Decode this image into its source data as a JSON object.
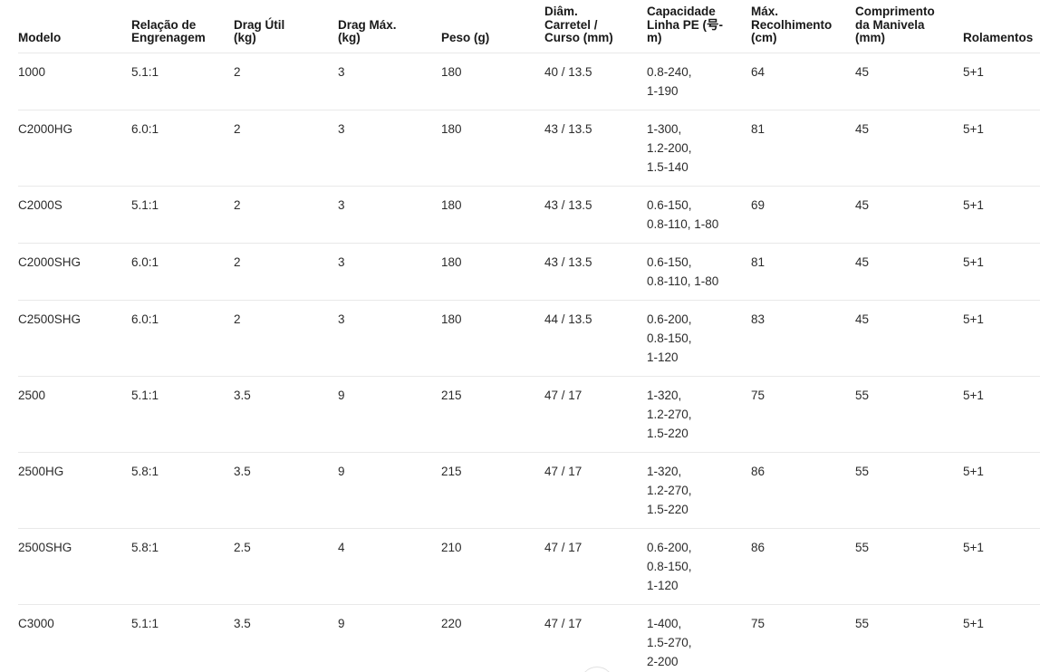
{
  "colors": {
    "background": "#ffffff",
    "header_text": "#191919",
    "body_text": "#2b2b2b",
    "divider": "#e9e9e9"
  },
  "table": {
    "columns": [
      {
        "id": "modelo",
        "label": "Modelo"
      },
      {
        "id": "gear_ratio",
        "label": "Relação de\nEngrenagem"
      },
      {
        "id": "drag_util",
        "label": "Drag Útil\n(kg)"
      },
      {
        "id": "drag_max",
        "label": "Drag Máx.\n(kg)"
      },
      {
        "id": "peso",
        "label": "Peso (g)"
      },
      {
        "id": "diam",
        "label": "Diâm.\nCarretel /\nCurso (mm)"
      },
      {
        "id": "capacidade",
        "label": "Capacidade\nLinha PE (号-\nm)"
      },
      {
        "id": "recolhimento",
        "label": "Máx.\nRecolhimento\n(cm)"
      },
      {
        "id": "manivela",
        "label": "Comprimento\nda Manivela\n(mm)"
      },
      {
        "id": "rolamentos",
        "label": "Rolamentos"
      }
    ],
    "rows": [
      {
        "modelo": "1000",
        "gear_ratio": "5.1:1",
        "drag_util": "2",
        "drag_max": "3",
        "peso": "180",
        "diam": "40 / 13.5",
        "capacidade": "0.8-240,\n1-190",
        "recolhimento": "64",
        "manivela": "45",
        "rolamentos": "5+1"
      },
      {
        "modelo": "C2000HG",
        "gear_ratio": "6.0:1",
        "drag_util": "2",
        "drag_max": "3",
        "peso": "180",
        "diam": "43 / 13.5",
        "capacidade": "1-300,\n1.2-200,\n1.5-140",
        "recolhimento": "81",
        "manivela": "45",
        "rolamentos": "5+1"
      },
      {
        "modelo": "C2000S",
        "gear_ratio": "5.1:1",
        "drag_util": "2",
        "drag_max": "3",
        "peso": "180",
        "diam": "43 / 13.5",
        "capacidade": "0.6-150,\n0.8-110, 1-80",
        "recolhimento": "69",
        "manivela": "45",
        "rolamentos": "5+1"
      },
      {
        "modelo": "C2000SHG",
        "gear_ratio": "6.0:1",
        "drag_util": "2",
        "drag_max": "3",
        "peso": "180",
        "diam": "43 / 13.5",
        "capacidade": "0.6-150,\n0.8-110, 1-80",
        "recolhimento": "81",
        "manivela": "45",
        "rolamentos": "5+1"
      },
      {
        "modelo": "C2500SHG",
        "gear_ratio": "6.0:1",
        "drag_util": "2",
        "drag_max": "3",
        "peso": "180",
        "diam": "44 / 13.5",
        "capacidade": "0.6-200,\n0.8-150,\n1-120",
        "recolhimento": "83",
        "manivela": "45",
        "rolamentos": "5+1"
      },
      {
        "modelo": "2500",
        "gear_ratio": "5.1:1",
        "drag_util": "3.5",
        "drag_max": "9",
        "peso": "215",
        "diam": "47 / 17",
        "capacidade": "1-320,\n1.2-270,\n1.5-220",
        "recolhimento": "75",
        "manivela": "55",
        "rolamentos": "5+1"
      },
      {
        "modelo": "2500HG",
        "gear_ratio": "5.8:1",
        "drag_util": "3.5",
        "drag_max": "9",
        "peso": "215",
        "diam": "47 / 17",
        "capacidade": "1-320,\n1.2-270,\n1.5-220",
        "recolhimento": "86",
        "manivela": "55",
        "rolamentos": "5+1"
      },
      {
        "modelo": "2500SHG",
        "gear_ratio": "5.8:1",
        "drag_util": "2.5",
        "drag_max": "4",
        "peso": "210",
        "diam": "47 / 17",
        "capacidade": "0.6-200,\n0.8-150,\n1-120",
        "recolhimento": "86",
        "manivela": "55",
        "rolamentos": "5+1"
      },
      {
        "modelo": "C3000",
        "gear_ratio": "5.1:1",
        "drag_util": "3.5",
        "drag_max": "9",
        "peso": "220",
        "diam": "47 / 17",
        "capacidade": "1-400,\n1.5-270,\n2-200",
        "recolhimento": "75",
        "manivela": "55",
        "rolamentos": "5+1"
      }
    ]
  },
  "floating_button": {
    "icon": "circle-button"
  }
}
